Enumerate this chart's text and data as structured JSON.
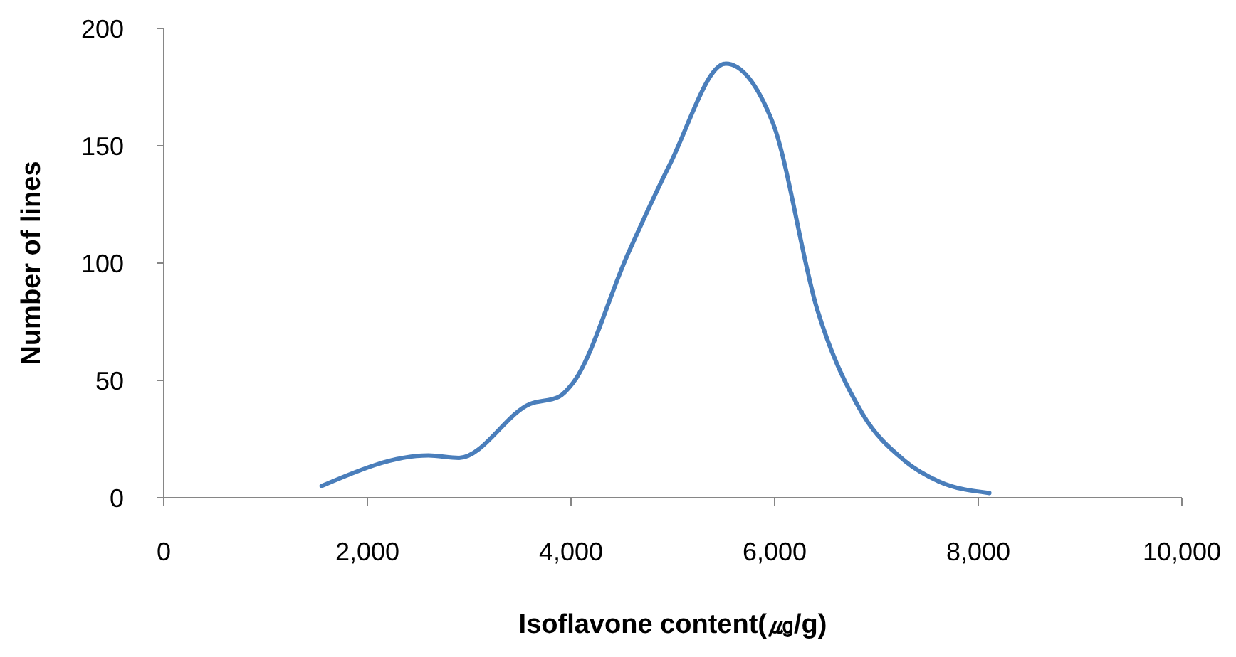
{
  "chart_data": {
    "type": "line",
    "xlabel": "Isoflavone content(㎍/g)",
    "ylabel": "Number of lines",
    "xlim": [
      0,
      10000
    ],
    "ylim": [
      0,
      200
    ],
    "xticks": [
      {
        "value": 0,
        "label": "0"
      },
      {
        "value": 2000,
        "label": "2,000"
      },
      {
        "value": 4000,
        "label": "4,000"
      },
      {
        "value": 6000,
        "label": "6,000"
      },
      {
        "value": 8000,
        "label": "8,000"
      },
      {
        "value": 10000,
        "label": "10,000"
      }
    ],
    "yticks": [
      0,
      50,
      100,
      150,
      200
    ],
    "grid": false,
    "marker": "none",
    "line_style": "solid",
    "series": [
      {
        "color": "#4a7ebb",
        "x": [
          1550,
          2600,
          2900,
          3600,
          3880,
          4020,
          4560,
          4970,
          5520,
          5980,
          6420,
          6860,
          7270,
          7610,
          8110
        ],
        "values": [
          5,
          18,
          17,
          40,
          43,
          49,
          104,
          142,
          185,
          160,
          80,
          36,
          16,
          7,
          2
        ]
      }
    ]
  }
}
